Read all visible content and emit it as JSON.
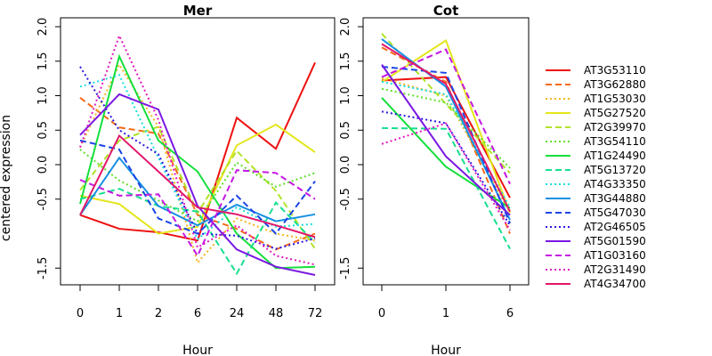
{
  "ylabel": "centered expression",
  "legend": {
    "genes": [
      "AT3G53110",
      "AT3G62880",
      "AT1G53030",
      "AT5G27520",
      "AT2G39970",
      "AT3G54110",
      "AT1G24490",
      "AT5G13720",
      "AT4G33350",
      "AT3G44880",
      "AT5G47030",
      "AT2G46505",
      "AT5G01590",
      "AT1G03160",
      "AT2G31490",
      "AT4G34700"
    ]
  },
  "colors": [
    "#ee1111",
    "#f56a1a",
    "#f2b61e",
    "#e4e61a",
    "#b2e22a",
    "#5fe029",
    "#15df3c",
    "#17df8f",
    "#18dede",
    "#178fe3",
    "#1a44e6",
    "#2a17e2",
    "#7a17e2",
    "#c517e2",
    "#e217bf",
    "#e2176a"
  ],
  "dashes": [
    "solid",
    "dash",
    "dot",
    "solid",
    "dash",
    "dot",
    "solid",
    "dash",
    "dot",
    "solid",
    "dash",
    "dot",
    "solid",
    "dash",
    "dot",
    "solid"
  ],
  "chart_data": [
    {
      "type": "line",
      "title": "Mer",
      "xlabel": "Hour",
      "ylabel": "centered expression",
      "categories": [
        "0",
        "1",
        "2",
        "6",
        "24",
        "48",
        "72"
      ],
      "ylim": [
        -1.75,
        2.1
      ],
      "yticks": [
        -1.5,
        -0.5,
        0.0,
        0.5,
        1.0,
        1.5,
        2.0
      ],
      "ytick_labels": [
        "-1.5",
        "-0.5",
        "0.0",
        "0.5",
        "1.0",
        "1.5",
        "2.0"
      ],
      "series": [
        {
          "name": "AT3G53110",
          "values": [
            -0.73,
            -0.93,
            -0.98,
            -1.1,
            0.68,
            0.23,
            1.48
          ]
        },
        {
          "name": "AT3G62880",
          "values": [
            0.97,
            0.54,
            0.45,
            -0.73,
            -0.93,
            -1.23,
            -1.0
          ]
        },
        {
          "name": "AT1G53030",
          "values": [
            0.25,
            1.45,
            0.55,
            -1.42,
            -0.78,
            -1.0,
            -1.1
          ]
        },
        {
          "name": "AT5G27520",
          "values": [
            -0.45,
            -0.57,
            -1.0,
            -0.9,
            0.28,
            0.58,
            0.18
          ]
        },
        {
          "name": "AT2G39970",
          "values": [
            -0.37,
            0.35,
            0.55,
            -0.7,
            0.2,
            -0.38,
            -1.22
          ]
        },
        {
          "name": "AT3G54110",
          "values": [
            0.22,
            -0.23,
            -0.52,
            -0.82,
            0.03,
            -0.32,
            -0.12
          ]
        },
        {
          "name": "AT1G24490",
          "values": [
            -0.57,
            1.57,
            0.35,
            -0.1,
            -1.0,
            -1.5,
            -1.48
          ]
        },
        {
          "name": "AT5G13720",
          "values": [
            -0.5,
            -0.35,
            -0.6,
            -0.68,
            -1.58,
            -0.55,
            -1.13
          ]
        },
        {
          "name": "AT4G33350",
          "values": [
            1.13,
            1.3,
            0.1,
            -1.08,
            -0.62,
            -0.9,
            -0.86
          ]
        },
        {
          "name": "AT3G44880",
          "values": [
            -0.73,
            0.1,
            -0.6,
            -0.88,
            -0.58,
            -0.82,
            -0.72
          ]
        },
        {
          "name": "AT5G47030",
          "values": [
            0.35,
            0.22,
            -0.78,
            -1.0,
            -0.45,
            -1.0,
            -0.24
          ]
        },
        {
          "name": "AT2G46505",
          "values": [
            1.42,
            0.5,
            0.15,
            -1.0,
            -1.03,
            -1.22,
            -1.07
          ]
        },
        {
          "name": "AT5G01590",
          "values": [
            0.43,
            1.02,
            0.8,
            -0.6,
            -1.23,
            -1.48,
            -1.6
          ]
        },
        {
          "name": "AT1G03160",
          "values": [
            -0.22,
            -0.45,
            -0.43,
            -1.32,
            -0.08,
            -0.12,
            -0.5
          ]
        },
        {
          "name": "AT2G31490",
          "values": [
            0.25,
            1.87,
            0.65,
            -1.2,
            -0.88,
            -1.32,
            -1.45
          ]
        },
        {
          "name": "AT4G34700",
          "values": [
            -0.73,
            0.42,
            -0.1,
            -0.62,
            -0.72,
            -0.88,
            -1.05
          ]
        }
      ]
    },
    {
      "type": "line",
      "title": "Cot",
      "xlabel": "Hour",
      "categories": [
        "0",
        "1",
        "6"
      ],
      "ylim": [
        -1.75,
        2.1
      ],
      "yticks": [
        -1.5,
        -0.5,
        0.0,
        0.5,
        1.0,
        1.5,
        2.0
      ],
      "ytick_labels": [
        "-1.5",
        "-0.5",
        "0.0",
        "0.5",
        "1.0",
        "1.5",
        "2.0"
      ],
      "series": [
        {
          "name": "AT3G53110",
          "values": [
            1.22,
            1.27,
            -0.48
          ]
        },
        {
          "name": "AT3G62880",
          "values": [
            1.7,
            1.2,
            -1.0
          ]
        },
        {
          "name": "AT1G53030",
          "values": [
            1.25,
            1.0,
            -0.7
          ]
        },
        {
          "name": "AT5G27520",
          "values": [
            1.2,
            1.8,
            -0.7
          ]
        },
        {
          "name": "AT2G39970",
          "values": [
            1.9,
            0.88,
            -0.12
          ]
        },
        {
          "name": "AT3G54110",
          "values": [
            1.1,
            0.9,
            -0.05
          ]
        },
        {
          "name": "AT1G24490",
          "values": [
            0.97,
            -0.03,
            -0.63
          ]
        },
        {
          "name": "AT5G13720",
          "values": [
            0.53,
            0.52,
            -1.22
          ]
        },
        {
          "name": "AT4G33350",
          "values": [
            1.2,
            1.02,
            -0.62
          ]
        },
        {
          "name": "AT3G44880",
          "values": [
            1.82,
            1.13,
            -0.8
          ]
        },
        {
          "name": "AT5G47030",
          "values": [
            1.42,
            1.33,
            -0.85
          ]
        },
        {
          "name": "AT2G46505",
          "values": [
            0.77,
            0.6,
            -0.88
          ]
        },
        {
          "name": "AT5G01590",
          "values": [
            1.45,
            0.12,
            -0.73
          ]
        },
        {
          "name": "AT1G03160",
          "values": [
            1.27,
            1.67,
            -0.28
          ]
        },
        {
          "name": "AT2G31490",
          "values": [
            0.3,
            0.6,
            -0.95
          ]
        },
        {
          "name": "AT4G34700",
          "values": [
            1.75,
            1.17,
            -0.68
          ]
        }
      ]
    }
  ]
}
